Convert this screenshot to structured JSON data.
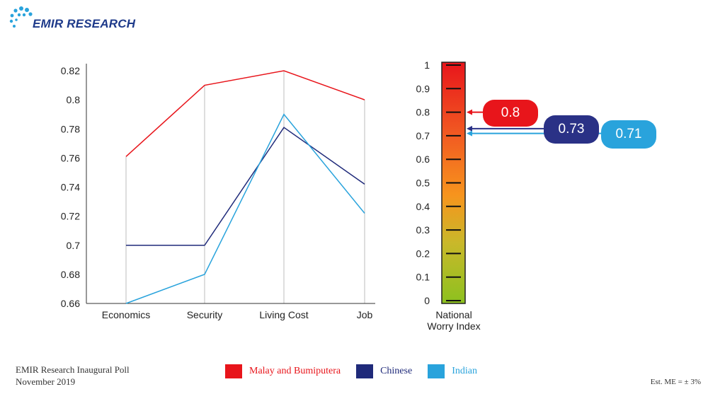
{
  "brand": {
    "name": "EMIR RESEARCH",
    "color": "#1e3a8a",
    "accent": "#1ea7e1"
  },
  "footer": {
    "source_line1": "EMIR Research Inaugural Poll",
    "source_line2": "November 2019",
    "margin_error": "Est. ME = ± 3%"
  },
  "chart_data": [
    {
      "type": "line",
      "title": "",
      "xlabel": "",
      "ylabel": "",
      "categories": [
        "Economics",
        "Security",
        "Living Cost",
        "Job"
      ],
      "ylim": [
        0.66,
        0.82
      ],
      "yticks": [
        "0.66",
        "0.68",
        "0.7",
        "0.72",
        "0.74",
        "0.76",
        "0.78",
        "0.8",
        "0.82"
      ],
      "grid": "vertical category lines",
      "legend_position": "bottom",
      "series": [
        {
          "name": "Malay and Bumiputera",
          "color": "#e8151b",
          "values": [
            0.761,
            0.81,
            0.82,
            0.8
          ]
        },
        {
          "name": "Chinese",
          "color": "#1f2a7a",
          "values": [
            0.7,
            0.7,
            0.781,
            0.742
          ]
        },
        {
          "name": "Indian",
          "color": "#29a3dc",
          "values": [
            0.66,
            0.68,
            0.79,
            0.722
          ]
        }
      ]
    },
    {
      "type": "gauge",
      "title": "National Worry Index",
      "title_line1": "National",
      "title_line2": "Worry Index",
      "ylim": [
        0,
        1
      ],
      "ticks": [
        "0",
        "0.1",
        "0.2",
        "0.3",
        "0.4",
        "0.5",
        "0.6",
        "0.7",
        "0.8",
        "0.9",
        "1"
      ],
      "markers": [
        {
          "name": "Malay and Bumiputera",
          "label": "0.8",
          "value": 0.8,
          "color": "#e8151b"
        },
        {
          "name": "Chinese",
          "label": "0.73",
          "value": 0.73,
          "color": "#2a3186"
        },
        {
          "name": "Indian",
          "label": "0.71",
          "value": 0.71,
          "color": "#29a3dc"
        }
      ]
    }
  ]
}
